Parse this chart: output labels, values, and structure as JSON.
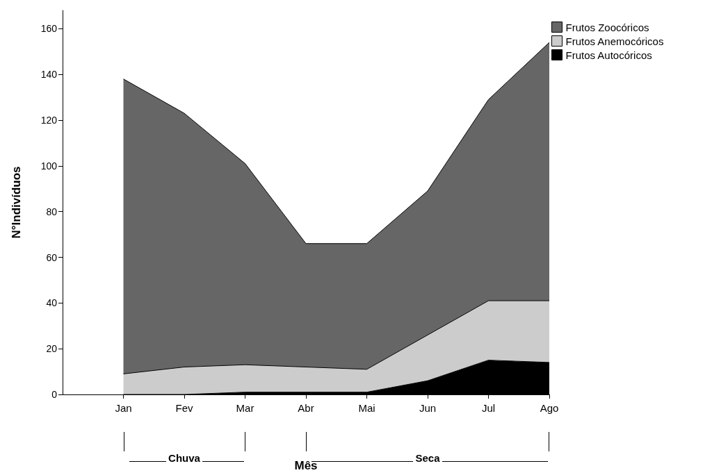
{
  "chart_data": {
    "type": "area",
    "stacked": true,
    "xlabel": "Mês",
    "ylabel": "N°Indivíduos",
    "categories": [
      null,
      "Jan",
      "Fev",
      "Mar",
      "Abr",
      "Mai",
      "Jun",
      "Jul",
      "Ago"
    ],
    "series": [
      {
        "name": "Frutos Autocóricos",
        "color": "#000000",
        "values": [
          null,
          0,
          0,
          1,
          1,
          1,
          6,
          15,
          14
        ]
      },
      {
        "name": "Frutos Anemocóricos",
        "color": "#cccccc",
        "values": [
          null,
          9,
          12,
          12,
          11,
          10,
          20,
          26,
          27
        ]
      },
      {
        "name": "Frutos Zoocóricos",
        "color": "#666666",
        "values": [
          null,
          129,
          111,
          88,
          54,
          55,
          63,
          88,
          113
        ]
      }
    ],
    "ylim": [
      0,
      168
    ],
    "yticks": [
      0,
      20,
      40,
      60,
      80,
      100,
      120,
      140,
      160
    ],
    "grid": false,
    "legend": "top right",
    "annotations": [
      "Chuva",
      "Seca"
    ]
  }
}
